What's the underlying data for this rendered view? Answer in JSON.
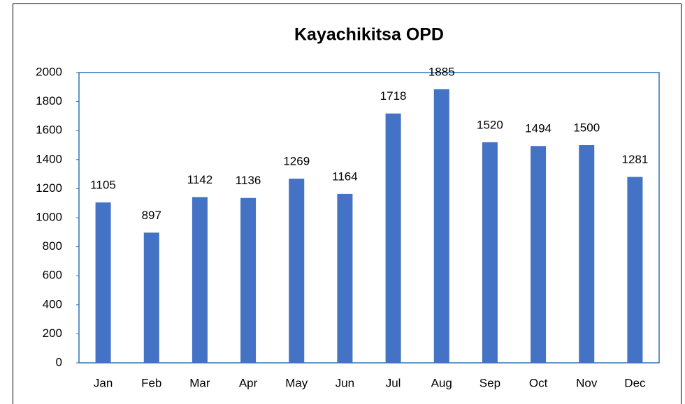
{
  "chart_data": {
    "type": "bar",
    "title": "Kayachikitsa OPD",
    "categories": [
      "Jan",
      "Feb",
      "Mar",
      "Apr",
      "May",
      "Jun",
      "Jul",
      "Aug",
      "Sep",
      "Oct",
      "Nov",
      "Dec"
    ],
    "values": [
      1105,
      897,
      1142,
      1136,
      1269,
      1164,
      1718,
      1885,
      1520,
      1494,
      1500,
      1281
    ],
    "color": "#4472c4",
    "ylim": [
      0,
      2000
    ],
    "yticks": [
      0,
      200,
      400,
      600,
      800,
      1000,
      1200,
      1400,
      1600,
      1800,
      2000
    ],
    "grid": false
  }
}
